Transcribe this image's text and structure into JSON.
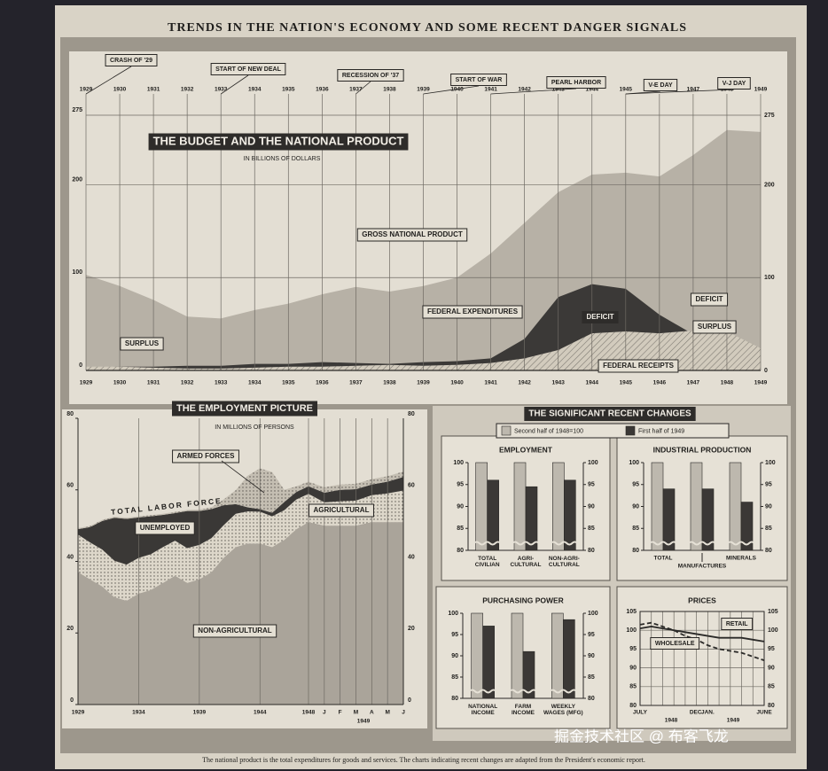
{
  "title": "TRENDS IN THE NATION'S ECONOMY AND SOME RECENT DANGER SIGNALS",
  "section_title": "THE SIGNIFICANT RECENT CHANGES",
  "footnote": "The national product is the total expenditures for goods and services. The charts indicating recent changes are adapted from the President's economic report.",
  "watermark": "掘金技术社区 @ 布客飞龙",
  "chart_data": [
    {
      "type": "area",
      "title": "THE BUDGET AND THE NATIONAL PRODUCT",
      "subtitle": "IN BILLIONS OF DOLLARS",
      "x": [
        1929,
        1930,
        1931,
        1932,
        1933,
        1934,
        1935,
        1936,
        1937,
        1938,
        1939,
        1940,
        1941,
        1942,
        1943,
        1944,
        1945,
        1946,
        1947,
        1948,
        1949
      ],
      "xlim": [
        1929,
        1949
      ],
      "xticks": [
        1929,
        1930,
        1931,
        1932,
        1933,
        1934,
        1935,
        1936,
        1937,
        1938,
        1939,
        1940,
        1941,
        1942,
        1943,
        1944,
        1945,
        1946,
        1947,
        1948,
        1949
      ],
      "ylim": [
        0,
        275
      ],
      "yticks": [
        0,
        100,
        200,
        275
      ],
      "grid": true,
      "series": [
        {
          "name": "GROSS NATIONAL PRODUCT",
          "color": "#b7b1a6",
          "values": [
            103,
            91,
            76,
            58,
            56,
            65,
            72,
            82,
            90,
            85,
            91,
            100,
            126,
            159,
            192,
            211,
            213,
            209,
            232,
            259,
            257
          ]
        },
        {
          "name": "FEDERAL EXPENDITURES",
          "color": "#3b3937",
          "values": [
            3,
            4,
            4,
            5,
            5,
            7,
            7,
            9,
            8,
            7,
            9,
            10,
            13,
            34,
            79,
            93,
            88,
            60,
            39,
            33,
            24
          ]
        },
        {
          "name": "FEDERAL RECEIPTS",
          "color": "#d2cbbd",
          "values": [
            4,
            4,
            3,
            2,
            2,
            3,
            4,
            4,
            5,
            6,
            5,
            6,
            8,
            13,
            22,
            40,
            42,
            40,
            43,
            42,
            24
          ]
        }
      ],
      "annotations": [
        "SURPLUS",
        "DEFICIT",
        "DEFICIT",
        "SURPLUS"
      ],
      "events": [
        {
          "label": "CRASH OF '29",
          "x": 1929
        },
        {
          "label": "START OF NEW DEAL",
          "x": 1933
        },
        {
          "label": "RECESSION OF '37",
          "x": 1937
        },
        {
          "label": "START OF WAR",
          "x": 1939
        },
        {
          "label": "PEARL HARBOR",
          "x": 1941
        },
        {
          "label": "V-E DAY",
          "x": 1945
        },
        {
          "label": "V-J DAY",
          "x": 1945
        }
      ]
    },
    {
      "type": "stacked_area",
      "title": "THE EMPLOYMENT PICTURE",
      "subtitle": "IN MILLIONS OF PERSONS",
      "categories": [
        "1929",
        null,
        null,
        null,
        null,
        "1934",
        null,
        null,
        null,
        null,
        "1939",
        null,
        null,
        null,
        null,
        "1944",
        null,
        null,
        null,
        "1948",
        "J",
        "F",
        "M",
        "A",
        "M",
        "J"
      ],
      "group_label": "1949",
      "ylim": [
        0,
        80
      ],
      "yticks": [
        0,
        20,
        40,
        60,
        80
      ],
      "series": [
        {
          "name": "NON-AGRICULTURAL",
          "color": "#aaa49a",
          "values": [
            37,
            35,
            33,
            30,
            29,
            31,
            32,
            34,
            36,
            34,
            35,
            37,
            41,
            44,
            45,
            45,
            44,
            46,
            49,
            51,
            50,
            50,
            50,
            51,
            51,
            51
          ]
        },
        {
          "name": "AGRICULTURAL",
          "color": "#ddd7ca",
          "values": [
            10.5,
            10.3,
            10.3,
            10.2,
            10.1,
            10,
            10,
            10,
            9.8,
            9.7,
            9.6,
            9.5,
            9.1,
            9.3,
            9,
            8.9,
            8.6,
            8.3,
            8.3,
            7.9,
            6.5,
            6.8,
            7,
            7.5,
            8,
            8.8
          ]
        },
        {
          "name": "UNEMPLOYED",
          "color": "#3a3836",
          "values": [
            1.5,
            4.3,
            8,
            12,
            12.8,
            11.3,
            10.6,
            9,
            7.7,
            10.4,
            9.5,
            8.1,
            5.6,
            2.7,
            1.1,
            0.7,
            1,
            2.3,
            2.1,
            2.1,
            2.7,
            3.2,
            3.2,
            3,
            3.3,
            3.8
          ]
        },
        {
          "name": "ARMED FORCES",
          "color": "#c4beb2",
          "values": [
            0.3,
            0.3,
            0.3,
            0.3,
            0.3,
            0.3,
            0.3,
            0.3,
            0.3,
            0.3,
            0.4,
            0.5,
            1.6,
            3.9,
            8.9,
            11.4,
            11.4,
            3.4,
            1.6,
            1.3,
            1.5,
            1.5,
            1.5,
            1.5,
            1.5,
            1.5
          ]
        }
      ],
      "annotations": [
        "TOTAL LABOR FORCE"
      ]
    },
    {
      "type": "bar",
      "title": "EMPLOYMENT",
      "categories": [
        "TOTAL\nCIVILIAN",
        "AGRI-\nCULTURAL",
        "NON-AGRI-\nCULTURAL"
      ],
      "ylim": [
        80,
        100
      ],
      "yticks": [
        80,
        85,
        90,
        95,
        100
      ],
      "series": [
        {
          "name": "Second half of 1948=100",
          "color": "#bdb8ae",
          "values": [
            100,
            100,
            100
          ]
        },
        {
          "name": "First half of 1949",
          "color": "#3b3836",
          "values": [
            96,
            94.5,
            96
          ]
        }
      ]
    },
    {
      "type": "bar",
      "title": "INDUSTRIAL PRODUCTION",
      "categories": [
        "TOTAL",
        "MANUFACTURES",
        "MINERALS"
      ],
      "ylim": [
        80,
        100
      ],
      "yticks": [
        80,
        85,
        90,
        95,
        100
      ],
      "series": [
        {
          "color": "#bdb8ae",
          "values": [
            100,
            100,
            100
          ]
        },
        {
          "color": "#3b3836",
          "values": [
            94,
            94,
            91
          ]
        }
      ]
    },
    {
      "type": "bar",
      "title": "PURCHASING POWER",
      "categories": [
        "NATIONAL\nINCOME",
        "FARM\nINCOME",
        "WEEKLY\nWAGES (MFG)"
      ],
      "ylim": [
        80,
        100
      ],
      "yticks": [
        80,
        85,
        90,
        95,
        100
      ],
      "series": [
        {
          "color": "#bdb8ae",
          "values": [
            100,
            100,
            100
          ]
        },
        {
          "color": "#3b3836",
          "values": [
            97,
            91,
            98.5
          ]
        }
      ]
    },
    {
      "type": "line",
      "title": "PRICES",
      "categories": [
        "JULY",
        null,
        null,
        null,
        null,
        "DEC.",
        "JAN.",
        null,
        null,
        null,
        null,
        "JUNE"
      ],
      "group_labels": [
        "1948",
        "1949"
      ],
      "ylim": [
        80,
        105
      ],
      "yticks": [
        80,
        85,
        90,
        95,
        100,
        105
      ],
      "grid": true,
      "series": [
        {
          "name": "RETAIL",
          "color": "#2b2a28",
          "dashed": false,
          "values": [
            100.5,
            101,
            100.5,
            100,
            99.5,
            99,
            98.5,
            98,
            98,
            98,
            97.5,
            97
          ]
        },
        {
          "name": "WHOLESALE",
          "color": "#2b2a28",
          "dashed": true,
          "values": [
            101.5,
            102,
            101,
            100,
            98.5,
            97.5,
            96,
            95,
            94.5,
            94,
            93,
            92
          ]
        }
      ]
    }
  ]
}
